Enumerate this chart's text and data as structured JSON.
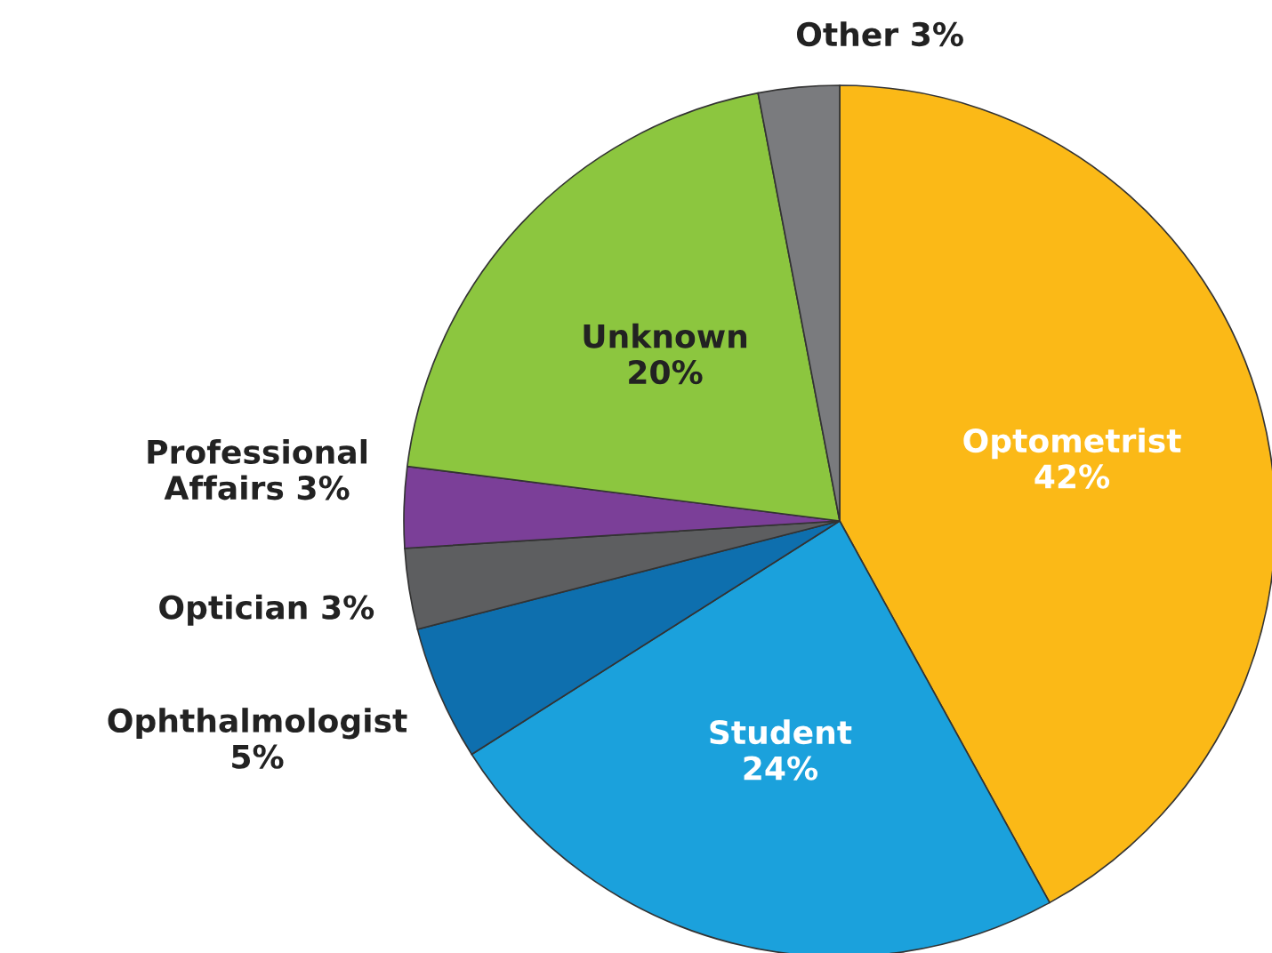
{
  "chart_data": {
    "type": "pie",
    "categories": [
      "Optometrist",
      "Student",
      "Ophthalmologist",
      "Optician",
      "Professional Affairs",
      "Unknown",
      "Other"
    ],
    "values": [
      42,
      24,
      5,
      3,
      3,
      20,
      3
    ],
    "colors": [
      "#fbb917",
      "#1ba1dc",
      "#0e6fae",
      "#5d5e60",
      "#7b3f98",
      "#8cc63f",
      "#7a7b7e"
    ],
    "value_labels": [
      "42%",
      "24%",
      "5%",
      "3%",
      "3%",
      "20%",
      "3%"
    ]
  }
}
